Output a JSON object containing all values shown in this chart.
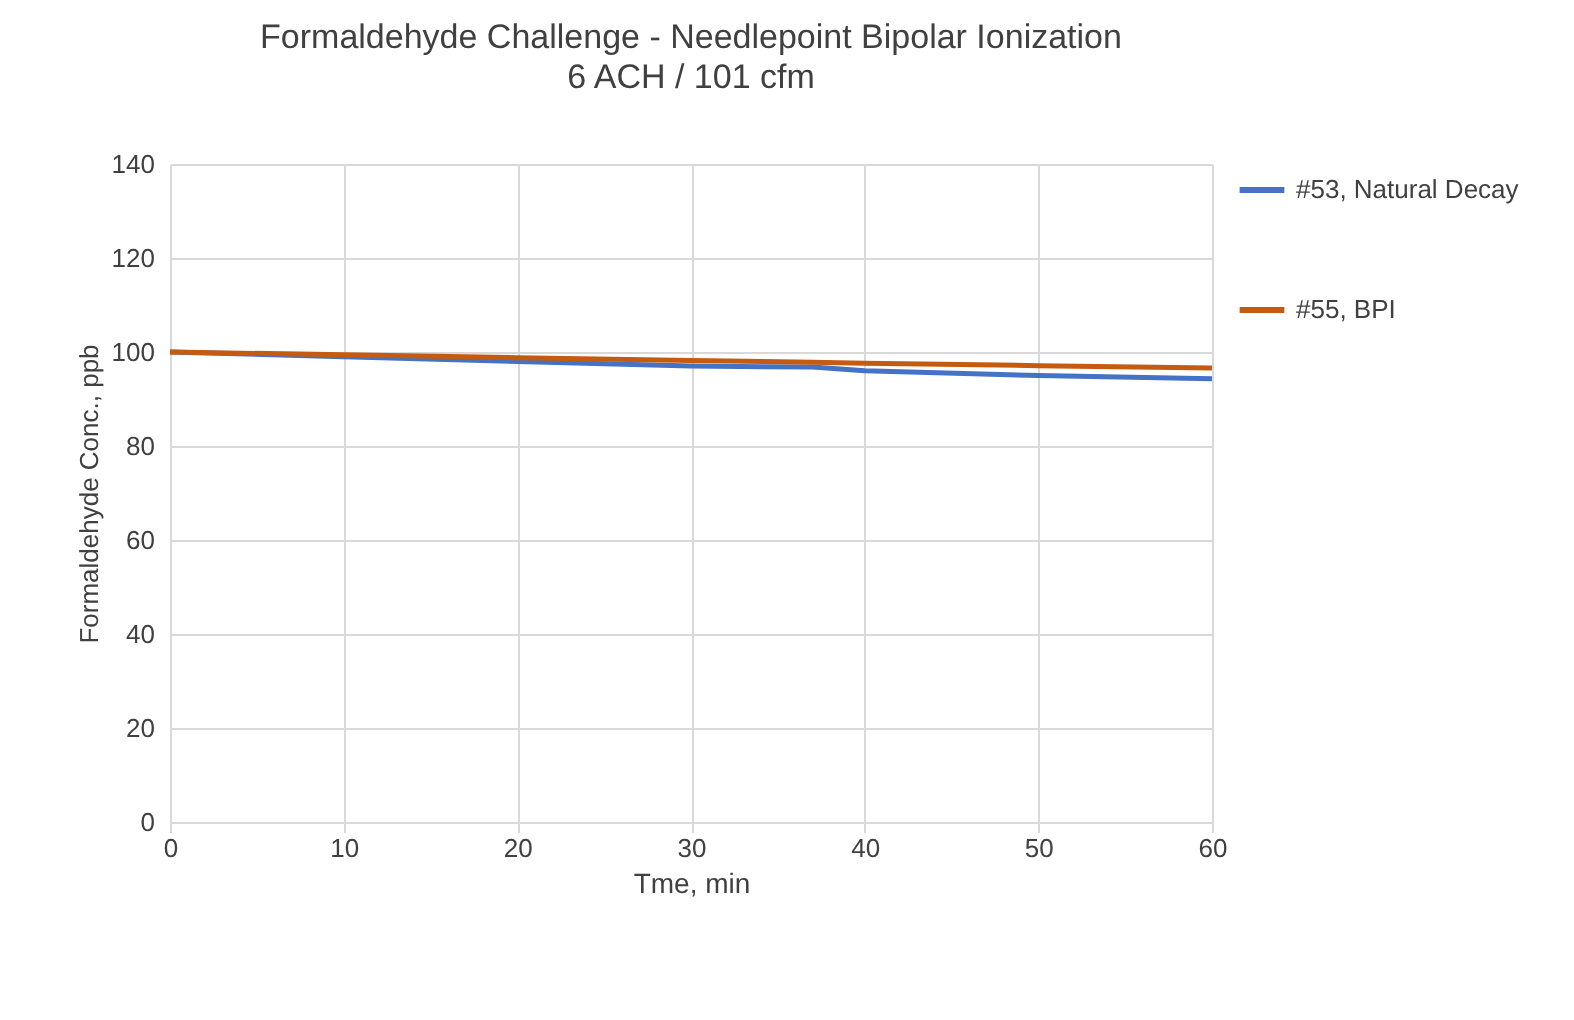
{
  "chart_data": {
    "type": "line",
    "title": "Formaldehyde Challenge - Needlepoint Bipolar Ionization",
    "subtitle": "6 ACH / 101 cfm",
    "xlabel": "Tme, min",
    "ylabel": "Formaldehyde Conc., ppb",
    "x": [
      0,
      10,
      20,
      30,
      37,
      40,
      50,
      60
    ],
    "series": [
      {
        "name": "#53, Natural Decay",
        "color": "#4472c4",
        "values": [
          100,
          99,
          98,
          97,
          96.8,
          96,
          95,
          94.3
        ]
      },
      {
        "name": "#55, BPI",
        "color": "#c55a11",
        "values": [
          100,
          99.4,
          98.8,
          98.2,
          97.8,
          97.6,
          97.1,
          96.6
        ]
      }
    ],
    "xlim": [
      0,
      60
    ],
    "xticks": [
      0,
      10,
      20,
      30,
      40,
      50,
      60
    ],
    "ylim": [
      0,
      140
    ],
    "yticks": [
      0,
      20,
      40,
      60,
      80,
      100,
      120,
      140
    ],
    "grid": true,
    "legend": "right",
    "marker": "none",
    "line_style": "solid"
  }
}
